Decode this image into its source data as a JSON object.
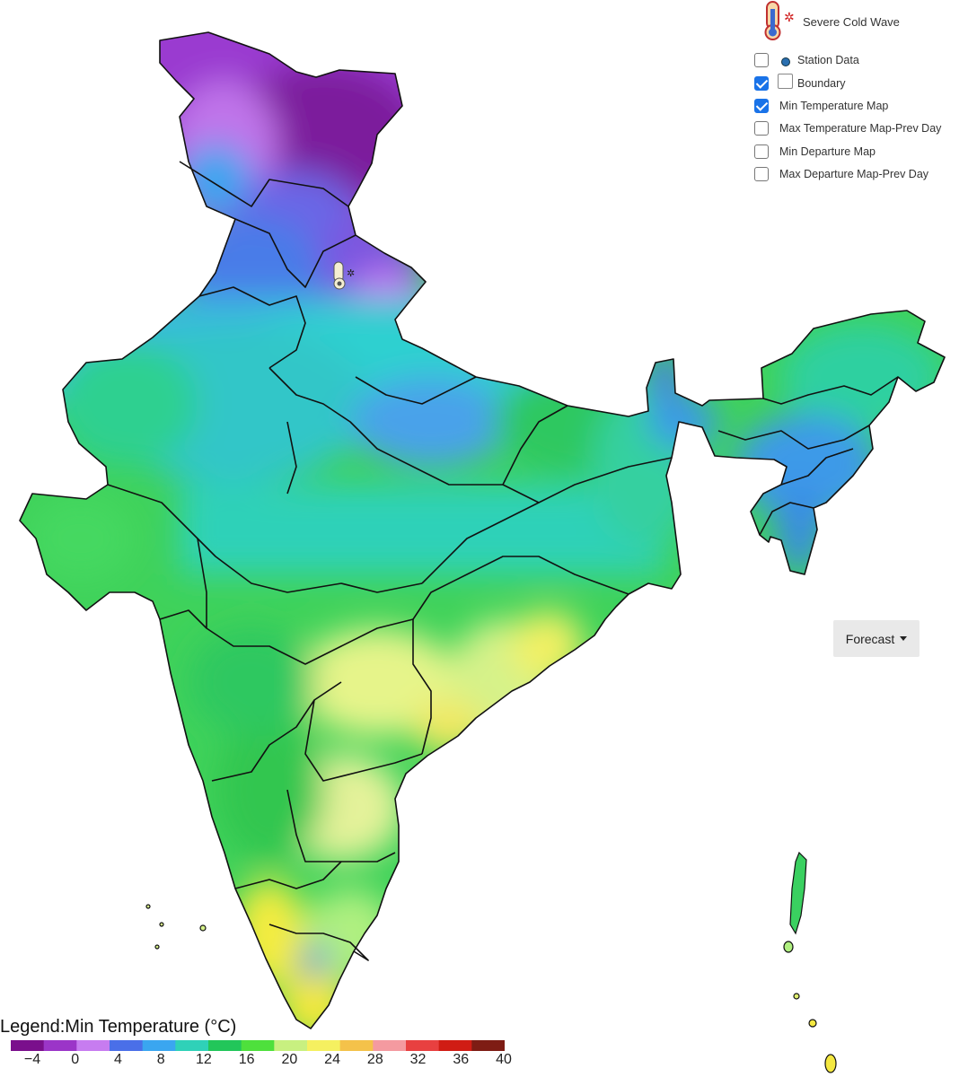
{
  "layers": {
    "severe_cold_wave_label": "Severe Cold Wave",
    "items": [
      {
        "label": "Station Data",
        "checked": false,
        "icon": "station-marker-icon"
      },
      {
        "label": "Boundary",
        "checked": true,
        "icon": "boundary-swatch-icon"
      },
      {
        "label": "Min Temperature Map",
        "checked": true
      },
      {
        "label": "Max Temperature Map-Prev Day",
        "checked": false
      },
      {
        "label": "Min Departure Map",
        "checked": false
      },
      {
        "label": "Max Departure Map-Prev Day",
        "checked": false
      }
    ]
  },
  "forecast_button": "Forecast",
  "legend": {
    "title": "Legend:Min Temperature (°C)",
    "ticks": [
      "−4",
      "0",
      "4",
      "8",
      "12",
      "16",
      "20",
      "24",
      "28",
      "32",
      "36",
      "40"
    ],
    "colors": [
      "#7a0f8c",
      "#9b35c8",
      "#c77cf0",
      "#4a6fe8",
      "#3aa6f0",
      "#2fd1b8",
      "#22c65a",
      "#4ee03c",
      "#c8f080",
      "#f5f060",
      "#f4c24a",
      "#f49aa0",
      "#e84040",
      "#d01c14",
      "#7e1c14"
    ]
  },
  "alert_marker": {
    "type": "severe-cold-wave",
    "icon": "thermometer-snowflake-icon"
  }
}
